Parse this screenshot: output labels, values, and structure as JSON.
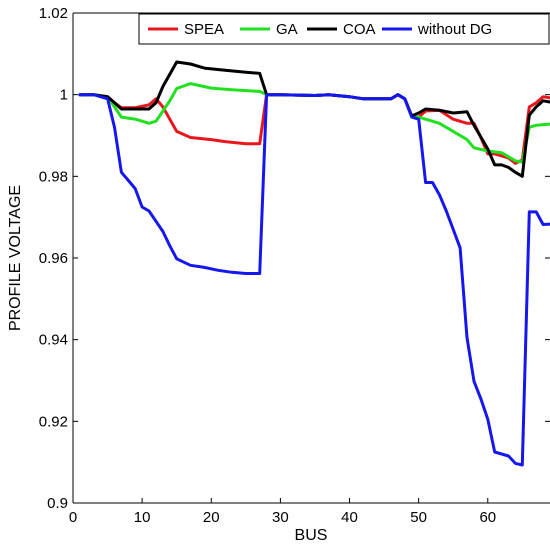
{
  "chart_data": {
    "type": "line",
    "xlabel": "BUS",
    "ylabel": "PROFILE VOLTAGE",
    "xlim": [
      0,
      69
    ],
    "ylim": [
      0.9,
      1.02
    ],
    "xticks": [
      0,
      10,
      20,
      30,
      40,
      50,
      60
    ],
    "yticks": [
      0.9,
      0.92,
      0.94,
      0.96,
      0.98,
      1,
      1.02
    ],
    "ytick_labels": [
      "0.9",
      "0.92",
      "0.94",
      "0.96",
      "0.98",
      "1",
      "1.02"
    ],
    "grid": false,
    "legend_position": "top-right",
    "series": [
      {
        "name": "SPEA",
        "color": "#e8171d",
        "points": [
          [
            1,
            1.0
          ],
          [
            3,
            1.0
          ],
          [
            5,
            0.9995
          ],
          [
            6,
            0.998
          ],
          [
            7,
            0.9968
          ],
          [
            9,
            0.9968
          ],
          [
            11,
            0.9975
          ],
          [
            12,
            0.999
          ],
          [
            13,
            0.997
          ],
          [
            14,
            0.994
          ],
          [
            15,
            0.991
          ],
          [
            17,
            0.9895
          ],
          [
            20,
            0.989
          ],
          [
            22,
            0.9885
          ],
          [
            25,
            0.988
          ],
          [
            27,
            0.988
          ],
          [
            28,
            1.0
          ],
          [
            30,
            1.0
          ],
          [
            35,
            0.9998
          ],
          [
            37,
            1.0
          ],
          [
            40,
            0.9995
          ],
          [
            42,
            0.999
          ],
          [
            46,
            0.999
          ],
          [
            47,
            1.0
          ],
          [
            48,
            0.999
          ],
          [
            49,
            0.9948
          ],
          [
            50,
            0.9945
          ],
          [
            51,
            0.996
          ],
          [
            53,
            0.9962
          ],
          [
            55,
            0.994
          ],
          [
            57,
            0.993
          ],
          [
            58,
            0.993
          ],
          [
            59,
            0.9895
          ],
          [
            60,
            0.9855
          ],
          [
            61,
            0.9855
          ],
          [
            62,
            0.985
          ],
          [
            63,
            0.9845
          ],
          [
            64,
            0.9832
          ],
          [
            65,
            0.984
          ],
          [
            66,
            0.997
          ],
          [
            67,
            0.998
          ],
          [
            68,
            0.9995
          ],
          [
            69,
            0.9992
          ]
        ]
      },
      {
        "name": "GA",
        "color": "#22e01f",
        "points": [
          [
            1,
            1.0
          ],
          [
            3,
            1.0
          ],
          [
            5,
            0.9995
          ],
          [
            6,
            0.997
          ],
          [
            7,
            0.9945
          ],
          [
            9,
            0.994
          ],
          [
            10,
            0.9935
          ],
          [
            11,
            0.993
          ],
          [
            12,
            0.9935
          ],
          [
            13,
            0.996
          ],
          [
            14,
            0.9985
          ],
          [
            15,
            1.0015
          ],
          [
            17,
            1.0027
          ],
          [
            20,
            1.0016
          ],
          [
            23,
            1.0012
          ],
          [
            25,
            1.001
          ],
          [
            27,
            1.0008
          ],
          [
            28,
            1.0
          ],
          [
            30,
            1.0
          ],
          [
            35,
            0.9998
          ],
          [
            37,
            1.0
          ],
          [
            40,
            0.9995
          ],
          [
            42,
            0.999
          ],
          [
            46,
            0.999
          ],
          [
            47,
            1.0
          ],
          [
            48,
            0.999
          ],
          [
            49,
            0.9948
          ],
          [
            50,
            0.9945
          ],
          [
            51,
            0.994
          ],
          [
            53,
            0.993
          ],
          [
            55,
            0.991
          ],
          [
            57,
            0.989
          ],
          [
            58,
            0.987
          ],
          [
            60,
            0.9862
          ],
          [
            62,
            0.9858
          ],
          [
            64,
            0.9838
          ],
          [
            65,
            0.9835
          ],
          [
            66,
            0.992
          ],
          [
            67,
            0.9925
          ],
          [
            69,
            0.9928
          ]
        ]
      },
      {
        "name": "COA",
        "color": "#000000",
        "points": [
          [
            1,
            1.0
          ],
          [
            3,
            1.0
          ],
          [
            5,
            0.9995
          ],
          [
            6,
            0.998
          ],
          [
            7,
            0.9965
          ],
          [
            9,
            0.9965
          ],
          [
            11,
            0.9965
          ],
          [
            12,
            0.998
          ],
          [
            13,
            1.002
          ],
          [
            14,
            1.005
          ],
          [
            15,
            1.008
          ],
          [
            17,
            1.0075
          ],
          [
            19,
            1.0065
          ],
          [
            22,
            1.006
          ],
          [
            25,
            1.0055
          ],
          [
            27,
            1.0052
          ],
          [
            28,
            1.0
          ],
          [
            30,
            1.0
          ],
          [
            35,
            0.9998
          ],
          [
            37,
            1.0
          ],
          [
            40,
            0.9995
          ],
          [
            42,
            0.999
          ],
          [
            46,
            0.999
          ],
          [
            47,
            1.0
          ],
          [
            48,
            0.999
          ],
          [
            49,
            0.9948
          ],
          [
            50,
            0.9955
          ],
          [
            51,
            0.9965
          ],
          [
            53,
            0.9962
          ],
          [
            55,
            0.9955
          ],
          [
            57,
            0.9958
          ],
          [
            58,
            0.9925
          ],
          [
            60,
            0.9867
          ],
          [
            61,
            0.9828
          ],
          [
            62,
            0.9828
          ],
          [
            63,
            0.9822
          ],
          [
            64,
            0.981
          ],
          [
            65,
            0.98
          ],
          [
            66,
            0.995
          ],
          [
            67,
            0.997
          ],
          [
            68,
            0.9985
          ],
          [
            69,
            0.9982
          ]
        ]
      },
      {
        "name": "without DG",
        "color": "#1517ee",
        "points": [
          [
            1,
            1.0
          ],
          [
            3,
            1.0
          ],
          [
            5,
            0.999
          ],
          [
            6,
            0.992
          ],
          [
            7,
            0.981
          ],
          [
            8,
            0.979
          ],
          [
            9,
            0.977
          ],
          [
            10,
            0.9725
          ],
          [
            11,
            0.9715
          ],
          [
            12,
            0.969
          ],
          [
            13,
            0.9665
          ],
          [
            14,
            0.963
          ],
          [
            15,
            0.9598
          ],
          [
            17,
            0.9582
          ],
          [
            19,
            0.9577
          ],
          [
            21,
            0.957
          ],
          [
            23,
            0.9565
          ],
          [
            25,
            0.9562
          ],
          [
            27,
            0.9562
          ],
          [
            28,
            1.0
          ],
          [
            30,
            1.0
          ],
          [
            35,
            0.9998
          ],
          [
            37,
            1.0
          ],
          [
            40,
            0.9995
          ],
          [
            42,
            0.999
          ],
          [
            46,
            0.999
          ],
          [
            47,
            1.0
          ],
          [
            48,
            0.999
          ],
          [
            49,
            0.9945
          ],
          [
            50,
            0.994
          ],
          [
            51,
            0.9785
          ],
          [
            52,
            0.9785
          ],
          [
            53,
            0.9755
          ],
          [
            54,
            0.9715
          ],
          [
            55,
            0.967
          ],
          [
            56,
            0.9625
          ],
          [
            57,
            0.9405
          ],
          [
            58,
            0.9298
          ],
          [
            59,
            0.9255
          ],
          [
            60,
            0.9205
          ],
          [
            61,
            0.9125
          ],
          [
            62,
            0.912
          ],
          [
            63,
            0.9115
          ],
          [
            64,
            0.9097
          ],
          [
            65,
            0.9093
          ],
          [
            66,
            0.9713
          ],
          [
            67,
            0.9713
          ],
          [
            68,
            0.9682
          ],
          [
            69,
            0.9683
          ]
        ]
      }
    ]
  }
}
